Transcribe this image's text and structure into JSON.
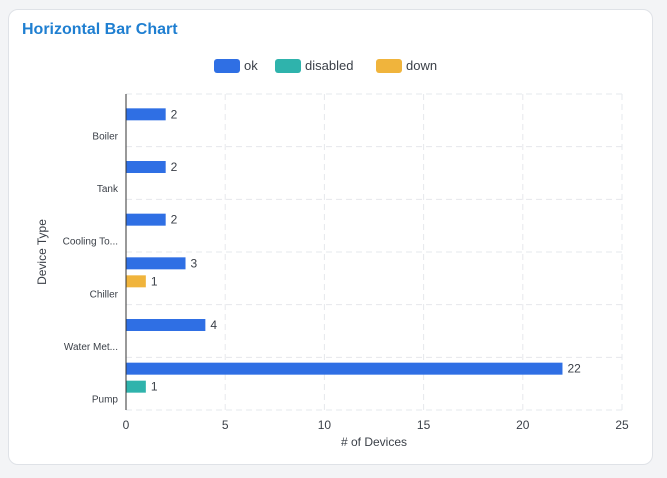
{
  "card": {
    "title": "Horizontal Bar Chart"
  },
  "chart_data": {
    "type": "bar",
    "orientation": "horizontal",
    "title": "Horizontal Bar Chart",
    "xlabel": "# of Devices",
    "ylabel": "Device Type",
    "categories": [
      "Boiler",
      "Tank",
      "Cooling To...",
      "Chiller",
      "Water Met...",
      "Pump"
    ],
    "series": [
      {
        "name": "ok",
        "color": "#2f6fe4",
        "values": [
          2,
          2,
          2,
          3,
          4,
          22
        ]
      },
      {
        "name": "disabled",
        "color": "#2fb3ac",
        "values": [
          0,
          0,
          0,
          0,
          0,
          1
        ]
      },
      {
        "name": "down",
        "color": "#f0b43c",
        "values": [
          0,
          0,
          0,
          1,
          0,
          0
        ]
      }
    ],
    "xlim": [
      0,
      25
    ],
    "xticks": [
      0,
      5,
      10,
      15,
      20,
      25
    ],
    "grid": true,
    "legend": "top-center"
  }
}
